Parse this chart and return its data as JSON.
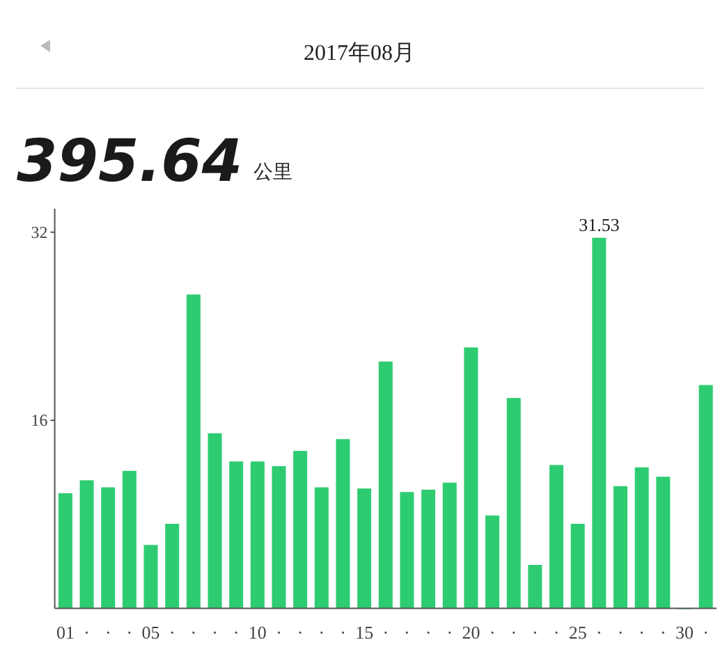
{
  "chart_data": {
    "type": "bar",
    "title": "2017年08月",
    "subtitle": "395.64",
    "annotations": [
      "公里"
    ],
    "categories": [
      "01",
      "·",
      "·",
      "·",
      "05",
      "·",
      "·",
      "·",
      "·",
      "10",
      "·",
      "·",
      "·",
      "·",
      "15",
      "·",
      "·",
      "·",
      "·",
      "20",
      "·",
      "·",
      "·",
      "·",
      "25",
      "·",
      "·",
      "·",
      "·",
      "30",
      "·"
    ],
    "values": [
      9.8,
      10.9,
      10.3,
      11.7,
      5.4,
      7.2,
      26.7,
      14.9,
      12.5,
      12.5,
      12.1,
      13.4,
      10.3,
      14.4,
      10.2,
      21.0,
      9.9,
      10.1,
      10.7,
      22.2,
      7.9,
      17.9,
      3.7,
      12.2,
      7.2,
      31.53,
      10.4,
      12.0,
      11.2,
      0,
      19.0
    ],
    "value_labels": [
      null,
      null,
      null,
      null,
      null,
      null,
      null,
      null,
      null,
      null,
      null,
      null,
      null,
      null,
      null,
      null,
      null,
      null,
      null,
      null,
      null,
      null,
      null,
      null,
      null,
      "31.53",
      null,
      null,
      null,
      null,
      null
    ],
    "color": "#2ecc71",
    "ylim": [
      0,
      34
    ],
    "yticks": [
      16,
      32
    ]
  }
}
